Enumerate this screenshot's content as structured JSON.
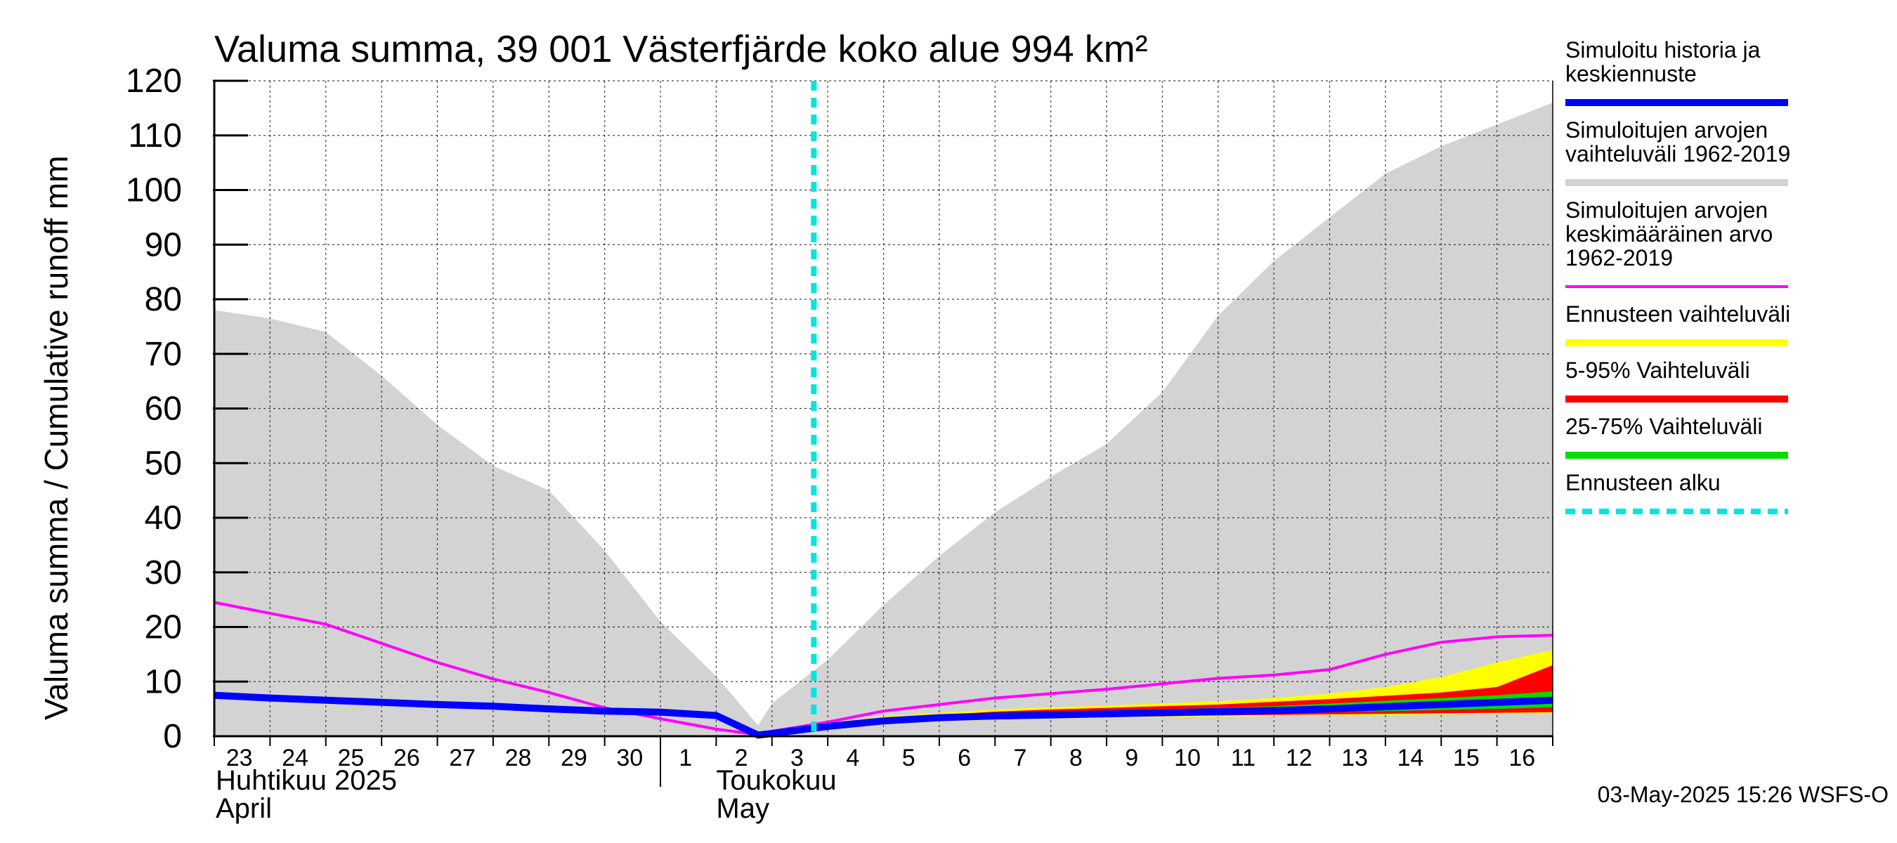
{
  "chart_data": {
    "type": "area",
    "title": "Valuma summa, 39 001 Västerfjärde koko alue 994 km²",
    "ylabel": "Valuma summa / Cumulative runoff    mm",
    "ylim": [
      0,
      120
    ],
    "yticks": [
      0,
      10,
      20,
      30,
      40,
      50,
      60,
      70,
      80,
      90,
      100,
      110,
      120
    ],
    "x_day_labels": [
      "23",
      "24",
      "25",
      "26",
      "27",
      "28",
      "29",
      "30",
      "1",
      "2",
      "3",
      "4",
      "5",
      "6",
      "7",
      "8",
      "9",
      "10",
      "11",
      "12",
      "13",
      "14",
      "15",
      "16"
    ],
    "month_labels": {
      "april_fi": "Huhtikuu  2025",
      "april_en": "April",
      "may_fi": "Toukokuu",
      "may_en": "May"
    },
    "grid": true,
    "legend_position": "right",
    "forecast_start_day": 10.75,
    "series": {
      "historical_range": {
        "x": [
          0,
          1,
          2,
          3,
          4,
          5,
          6,
          7,
          8,
          9,
          9.75,
          10,
          11,
          12,
          13,
          14,
          15,
          16,
          17,
          18,
          19,
          20,
          21,
          22,
          23,
          24
        ],
        "upper": [
          78,
          76.5,
          74,
          66,
          57,
          49.5,
          45,
          34,
          21,
          11,
          2,
          6,
          14,
          24,
          33,
          41,
          47.5,
          53.5,
          63,
          77,
          87,
          95,
          103,
          108,
          112,
          116
        ],
        "lower": [
          0,
          0,
          0,
          0,
          0,
          0,
          0,
          0,
          0,
          0,
          0,
          0,
          0,
          0,
          0,
          0,
          0,
          0,
          0,
          0,
          0,
          0,
          0,
          0,
          0,
          0
        ]
      },
      "mean_1962_2019": {
        "x": [
          0,
          1,
          2,
          3,
          4,
          5,
          6,
          7,
          8,
          9,
          9.75,
          10,
          11,
          12,
          13,
          14,
          15,
          16,
          17,
          18,
          19,
          20,
          21,
          22,
          23,
          24
        ],
        "values": [
          24.5,
          22.5,
          20.5,
          17,
          13.5,
          10.5,
          8,
          5.2,
          3.2,
          1.3,
          0.3,
          0.9,
          2.6,
          4.6,
          5.8,
          7,
          7.8,
          8.6,
          9.6,
          10.6,
          11.2,
          12.2,
          15,
          17.2,
          18.2,
          18.5
        ]
      },
      "forecast_x": [
        9.75,
        10,
        11,
        12,
        13,
        14,
        15,
        16,
        17,
        18,
        19,
        20,
        21,
        22,
        23,
        24
      ],
      "forecast_range": {
        "upper": [
          0.4,
          1.0,
          2.4,
          3.6,
          4.3,
          4.9,
          5.3,
          5.6,
          6.0,
          6.4,
          7.0,
          7.8,
          9.0,
          10.8,
          13.5,
          15.8
        ],
        "lower": [
          0.1,
          0.3,
          1.3,
          2.3,
          2.7,
          3.0,
          3.2,
          3.4,
          3.5,
          3.6,
          3.7,
          3.8,
          3.9,
          4.0,
          4.1,
          4.2
        ]
      },
      "range_5_95": {
        "upper": [
          0.3,
          0.8,
          2.1,
          3.2,
          3.9,
          4.5,
          4.9,
          5.2,
          5.5,
          5.8,
          6.3,
          6.8,
          7.4,
          8.0,
          9.0,
          13.0
        ],
        "lower": [
          0.15,
          0.4,
          1.5,
          2.5,
          2.9,
          3.2,
          3.4,
          3.6,
          3.7,
          3.8,
          3.9,
          4.0,
          4.1,
          4.2,
          4.3,
          4.4
        ]
      },
      "range_25_75": {
        "upper": [
          0.25,
          0.7,
          1.9,
          2.9,
          3.5,
          4.0,
          4.3,
          4.6,
          4.9,
          5.2,
          5.5,
          6.0,
          6.5,
          7.0,
          7.5,
          8.2
        ],
        "lower": [
          0.2,
          0.5,
          1.7,
          2.7,
          3.1,
          3.4,
          3.6,
          3.8,
          4.0,
          4.1,
          4.2,
          4.4,
          4.6,
          4.8,
          5.0,
          5.3
        ]
      },
      "simulated_history_forecast": {
        "x": [
          0,
          1,
          2,
          3,
          4,
          5,
          6,
          7,
          8,
          9,
          9.75,
          10,
          11,
          12,
          13,
          14,
          15,
          16,
          17,
          18,
          19,
          20,
          21,
          22,
          23,
          24
        ],
        "values": [
          7.5,
          7.0,
          6.6,
          6.2,
          5.8,
          5.5,
          5.0,
          4.6,
          4.4,
          3.8,
          0.2,
          0.5,
          1.8,
          2.8,
          3.4,
          3.7,
          3.9,
          4.1,
          4.3,
          4.5,
          4.7,
          5.0,
          5.4,
          5.8,
          6.2,
          6.6
        ]
      }
    },
    "colors": {
      "historical_range": "#d3d3d3",
      "mean": "#ff00ff",
      "forecast_range": "#ffff00",
      "range_5_95": "#ff0000",
      "range_25_75": "#00dd00",
      "simulated": "#0000ff",
      "forecast_start": "#00e5e5"
    }
  },
  "legend": [
    {
      "key": "simulated",
      "lines": [
        "Simuloitu historia ja",
        "keskiennuste"
      ],
      "style": "solid-thick"
    },
    {
      "key": "historical_range",
      "lines": [
        "Simuloitujen arvojen",
        "vaihteluväli 1962-2019"
      ],
      "style": "solid-thick"
    },
    {
      "key": "mean",
      "lines": [
        "Simuloitujen arvojen",
        "keskimääräinen arvo",
        "   1962-2019"
      ],
      "style": "solid-thin"
    },
    {
      "key": "forecast_range",
      "lines": [
        "Ennusteen vaihteluväli"
      ],
      "style": "solid-thick"
    },
    {
      "key": "range_5_95",
      "lines": [
        "5-95% Vaihteluväli"
      ],
      "style": "solid-thick"
    },
    {
      "key": "range_25_75",
      "lines": [
        "25-75% Vaihteluväli"
      ],
      "style": "solid-thick"
    },
    {
      "key": "forecast_start",
      "lines": [
        "Ennusteen alku"
      ],
      "style": "dashed"
    }
  ],
  "footer": "03-May-2025 15:26 WSFS-O"
}
